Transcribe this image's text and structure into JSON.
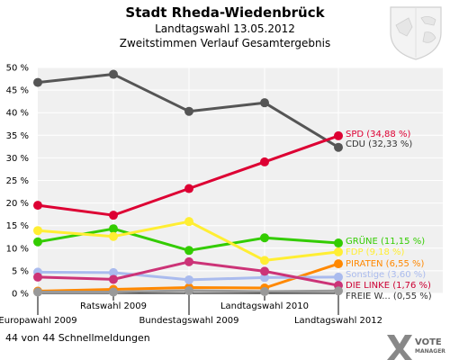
{
  "header": {
    "title": "Stadt Rheda-Wiedenbrück",
    "subtitle1": "Landtagswahl 13.05.2012",
    "subtitle2": "Zweitstimmen Verlauf Gesamtergebnis"
  },
  "footer": {
    "status": "44 von 44 Schnellmeldungen",
    "brand_line1": "VOTE",
    "brand_line2": "MANAGER"
  },
  "chart_data": {
    "type": "line",
    "categories": [
      "Europawahl 2009",
      "Ratswahl 2009",
      "Bundestagswahl 2009",
      "Landtagswahl 2010",
      "Landtagswahl 2012"
    ],
    "ylim": [
      0,
      50
    ],
    "yticks": [
      "0 %",
      "5 %",
      "10 %",
      "15 %",
      "20 %",
      "25 %",
      "30 %",
      "35 %",
      "40 %",
      "45 %",
      "50 %"
    ],
    "grid": true,
    "legend_position": "right, at line ends",
    "series": [
      {
        "name": "CDU",
        "label": "CDU (32,33 %)",
        "color": "#555555",
        "values": [
          46.7,
          48.5,
          40.3,
          42.2,
          32.33
        ]
      },
      {
        "name": "SPD",
        "label": "SPD (34,88 %)",
        "color": "#dd0033",
        "values": [
          19.5,
          17.3,
          23.2,
          29.1,
          34.88
        ]
      },
      {
        "name": "GRÜNE",
        "label": "GRÜNE (11,15 %)",
        "color": "#33cc00",
        "values": [
          11.4,
          14.3,
          9.5,
          12.3,
          11.15
        ]
      },
      {
        "name": "FDP",
        "label": "FDP (9,18 %)",
        "color": "#ffee33",
        "values": [
          13.9,
          12.6,
          15.9,
          7.3,
          9.18
        ]
      },
      {
        "name": "PIRATEN",
        "label": "PIRATEN (6,55 %)",
        "color": "#ff8800",
        "values": [
          0.5,
          0.9,
          1.3,
          1.2,
          6.55
        ]
      },
      {
        "name": "Sonstige",
        "label": "Sonstige (3,60 %)",
        "color": "#aabbee",
        "values": [
          4.7,
          4.6,
          3.0,
          3.5,
          3.6
        ]
      },
      {
        "name": "DIE LINKE",
        "label": "DIE LINKE (1,76 %)",
        "color": "#cc3377",
        "values": [
          3.6,
          3.1,
          7.0,
          4.9,
          1.76
        ]
      },
      {
        "name": "FREIE W...",
        "label": "FREIE W... (0,55 %)",
        "color": "#999999",
        "values": [
          0.3,
          0.3,
          0.6,
          0.4,
          0.55
        ]
      }
    ]
  },
  "legend_colors": {
    "CDU": "#333333",
    "SPD": "#dd0033",
    "GRÜNE": "#33cc00",
    "FDP": "#ffee33",
    "PIRATEN": "#ff8800",
    "Sonstige": "#aabbee",
    "DIE LINKE": "#cc0033",
    "FREIE W...": "#333333"
  },
  "crest_icon": "coat-of-arms-icon",
  "brand_icon": "vote-manager-logo-icon"
}
